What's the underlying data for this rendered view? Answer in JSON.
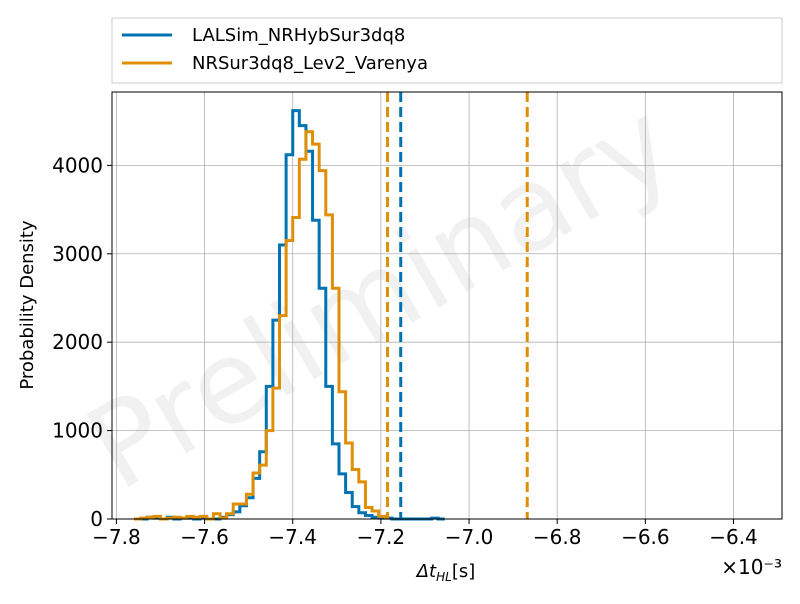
{
  "chart_data": {
    "type": "histogram",
    "xlabel": "Δt_HL [s]",
    "ylabel": "Probability Density",
    "x_multiplier_label": "×10⁻³",
    "xlim": [
      -7.81,
      -6.29
    ],
    "ylim": [
      0,
      4830
    ],
    "x_ticks": [
      -7.8,
      -7.6,
      -7.4,
      -7.2,
      -7.0,
      -6.8,
      -6.6,
      -6.4
    ],
    "x_tick_labels": [
      "−7.8",
      "−7.6",
      "−7.4",
      "−7.2",
      "−7.0",
      "−6.8",
      "−6.6",
      "−6.4"
    ],
    "y_ticks": [
      0,
      1000,
      2000,
      3000,
      4000
    ],
    "y_tick_labels": [
      "0",
      "1000",
      "2000",
      "3000",
      "4000"
    ],
    "grid": true,
    "legend_position": "above plot, full width",
    "watermark": "Preliminary",
    "series": [
      {
        "name": "LALSim_NRHybSur3dq8",
        "color": "#0173b2",
        "edges": [
          -7.76,
          -7.745,
          -7.73,
          -7.715,
          -7.7,
          -7.685,
          -7.67,
          -7.655,
          -7.64,
          -7.625,
          -7.61,
          -7.595,
          -7.58,
          -7.565,
          -7.55,
          -7.535,
          -7.52,
          -7.505,
          -7.49,
          -7.475,
          -7.46,
          -7.445,
          -7.43,
          -7.415,
          -7.4,
          -7.385,
          -7.37,
          -7.355,
          -7.34,
          -7.325,
          -7.31,
          -7.295,
          -7.28,
          -7.265,
          -7.25,
          -7.235,
          -7.22,
          -7.205,
          -7.19,
          -7.175,
          -7.16,
          -7.145,
          -7.13,
          -7.115,
          -7.1,
          -7.085,
          -7.07,
          -7.055,
          -7.04,
          -7.025,
          -7.01,
          -6.995,
          -6.98,
          -6.965,
          -6.95,
          -6.935,
          -6.92,
          -6.905,
          -6.89,
          -6.875,
          -6.86,
          -6.845,
          -6.83,
          -6.815,
          -6.8,
          -6.785,
          -6.77,
          -6.755,
          -6.74,
          -6.725,
          -6.71,
          -6.695,
          -6.68,
          -6.665,
          -6.65,
          -6.635,
          -6.62,
          -6.605,
          -6.59,
          -6.575,
          -6.56,
          -6.545,
          -6.53,
          -6.515,
          -6.5,
          -6.485,
          -6.47,
          -6.455,
          -6.44,
          -6.425,
          -6.41,
          -6.395,
          -6.38,
          -6.365,
          -6.35
        ],
        "values": [
          0,
          0,
          0,
          20,
          20,
          10,
          10,
          0,
          0,
          0,
          20,
          20,
          0,
          0,
          10,
          10,
          10,
          10,
          0,
          0,
          10,
          10,
          0,
          0,
          0,
          20,
          20,
          50,
          50,
          80,
          80,
          150,
          150,
          240,
          240,
          460,
          460,
          760,
          760,
          1500,
          1500,
          2250,
          2250,
          3100,
          3100,
          4120,
          4120,
          4620,
          4620,
          4450,
          4450,
          4160,
          4160,
          3380,
          3380,
          2610,
          2610,
          1500,
          1500,
          850,
          850,
          510,
          510,
          300,
          300,
          140,
          140,
          70,
          70,
          40,
          40,
          20,
          20,
          10,
          10,
          10,
          10,
          0,
          0,
          0,
          0,
          0,
          0,
          0,
          0,
          0,
          0,
          0,
          0,
          10,
          10,
          0,
          0,
          0
        ]
      },
      {
        "name": "NRSur3dq8_Lev2_Varenya",
        "color": "#de8f05",
        "edges": [
          -7.76,
          -7.745,
          -7.73,
          -7.715,
          -7.7,
          -7.685,
          -7.67,
          -7.655,
          -7.64,
          -7.625,
          -7.61,
          -7.595,
          -7.58,
          -7.565,
          -7.55,
          -7.535,
          -7.52,
          -7.505,
          -7.49,
          -7.475,
          -7.46,
          -7.445,
          -7.43,
          -7.415,
          -7.4,
          -7.385,
          -7.37,
          -7.355,
          -7.34,
          -7.325,
          -7.31,
          -7.295,
          -7.28,
          -7.265,
          -7.25,
          -7.235,
          -7.22,
          -7.205,
          -7.19,
          -7.175,
          -7.16,
          -7.145,
          -7.13,
          -7.115,
          -7.1,
          -7.085,
          -7.07,
          -7.055,
          -7.04,
          -7.025,
          -7.01,
          -6.995,
          -6.98,
          -6.965,
          -6.95,
          -6.935,
          -6.92,
          -6.905,
          -6.89,
          -6.875,
          -6.86,
          -6.845,
          -6.83,
          -6.815,
          -6.8,
          -6.785,
          -6.77,
          -6.755,
          -6.74,
          -6.725,
          -6.71,
          -6.695,
          -6.68,
          -6.665,
          -6.65,
          -6.635,
          -6.62
        ],
        "values": [
          0,
          10,
          10,
          20,
          20,
          30,
          30,
          0,
          0,
          0,
          10,
          10,
          20,
          20,
          10,
          10,
          30,
          30,
          20,
          20,
          30,
          30,
          0,
          0,
          60,
          60,
          10,
          10,
          60,
          60,
          170,
          170,
          170,
          170,
          280,
          280,
          520,
          520,
          610,
          610,
          1000,
          1000,
          1480,
          1480,
          2300,
          2300,
          3150,
          3150,
          3410,
          3410,
          4070,
          4070,
          4380,
          4380,
          4240,
          4240,
          3940,
          3940,
          3440,
          3440,
          2610,
          2610,
          1440,
          1440,
          860,
          860,
          560,
          560,
          420,
          420,
          130,
          130,
          90,
          90,
          30,
          30
        ]
      }
    ],
    "vlines": [
      {
        "series": "LALSim_NRHybSur3dq8",
        "x": -7.155,
        "color": "#0173b2"
      },
      {
        "series": "NRSur3dq8_Lev2_Varenya",
        "x": -7.185,
        "color": "#de8f05"
      },
      {
        "series": "NRSur3dq8_Lev2_Varenya",
        "x": -6.868,
        "color": "#de8f05"
      }
    ]
  }
}
